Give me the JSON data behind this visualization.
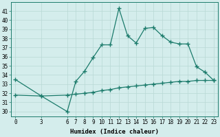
{
  "xlabel": "Humidex (Indice chaleur)",
  "ylabel": "",
  "bg_color": "#d4edec",
  "grid_color": "#b8d8d5",
  "line_color": "#1a7a6a",
  "x_ticks": [
    0,
    3,
    6,
    7,
    8,
    9,
    10,
    11,
    12,
    13,
    14,
    15,
    16,
    17,
    18,
    19,
    20,
    21,
    22,
    23
  ],
  "y_ticks": [
    30,
    31,
    32,
    33,
    34,
    35,
    36,
    37,
    38,
    39,
    40,
    41
  ],
  "ylim": [
    29.5,
    42.0
  ],
  "xlim": [
    -0.5,
    23.5
  ],
  "line1_x": [
    0,
    3,
    6,
    7,
    8,
    9,
    10,
    11,
    12,
    13,
    14,
    15,
    16,
    17,
    18,
    19,
    20,
    21,
    22,
    23
  ],
  "line1_y": [
    33.5,
    31.7,
    30.0,
    33.3,
    34.4,
    35.9,
    37.3,
    37.3,
    41.3,
    38.3,
    37.5,
    39.1,
    39.2,
    38.3,
    37.6,
    37.4,
    37.4,
    34.9,
    34.3,
    33.4
  ],
  "line2_x": [
    0,
    3,
    6,
    7,
    8,
    9,
    10,
    11,
    12,
    13,
    14,
    15,
    16,
    17,
    18,
    19,
    20,
    21,
    22,
    23
  ],
  "line2_y": [
    31.8,
    31.7,
    31.8,
    31.9,
    32.0,
    32.1,
    32.3,
    32.4,
    32.6,
    32.7,
    32.8,
    32.9,
    33.0,
    33.1,
    33.2,
    33.3,
    33.3,
    33.4,
    33.4,
    33.4
  ],
  "marker": "+",
  "marker_size": 4,
  "linewidth": 0.9,
  "tick_fontsize": 5.5,
  "xlabel_fontsize": 6.5
}
